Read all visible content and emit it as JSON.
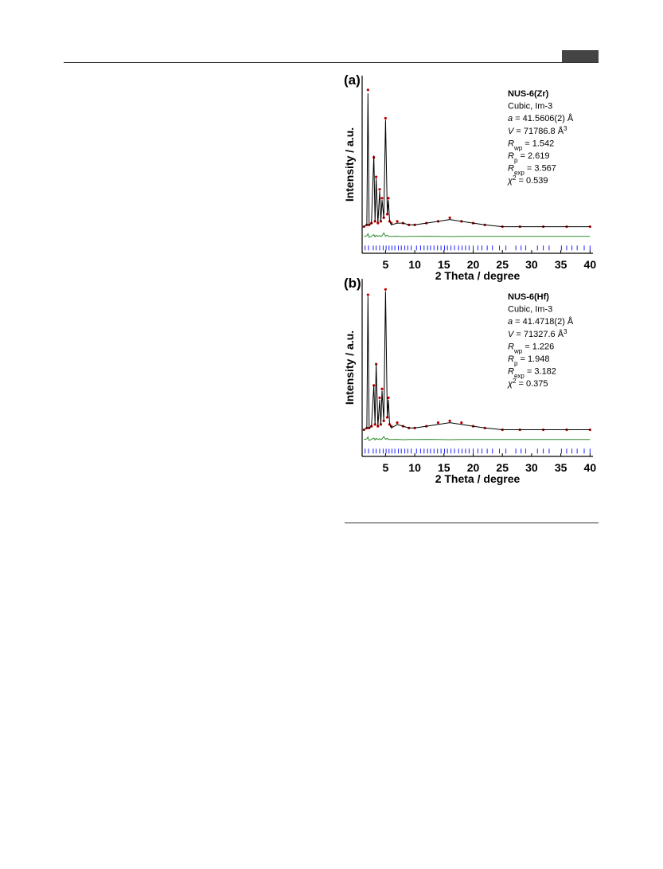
{
  "chart_data": [
    {
      "type": "line",
      "panel_label": "(a)",
      "x_label": "2 Theta / degree",
      "y_label": "Intensity / a.u.",
      "xlim": [
        1,
        40.5
      ],
      "ylim": [
        0,
        100
      ],
      "xticks": [
        5,
        10,
        15,
        20,
        25,
        30,
        35,
        40
      ],
      "annotations": [
        [
          {
            "text": "NUS-6(Zr)",
            "style": "bold"
          }
        ],
        [
          {
            "text": "Cubic, Im-3"
          }
        ],
        [
          {
            "text": "a",
            "style": "italic"
          },
          {
            "text": " = 41.5606(2) Å"
          }
        ],
        [
          {
            "text": "V",
            "style": "italic"
          },
          {
            "text": " = 71786.8 Å"
          },
          {
            "text": "3",
            "style": "sup"
          }
        ],
        [
          {
            "text": "R",
            "style": "italic"
          },
          {
            "text": "wp",
            "style": "sub"
          },
          {
            "text": " = 1.542"
          }
        ],
        [
          {
            "text": "R",
            "style": "italic"
          },
          {
            "text": "p",
            "style": "sub"
          },
          {
            "text": " = 2.619"
          }
        ],
        [
          {
            "text": "R",
            "style": "italic"
          },
          {
            "text": "exp",
            "style": "sub"
          },
          {
            "text": " = 3.567"
          }
        ],
        [
          {
            "text": "χ",
            "style": "italic"
          },
          {
            "text": "2",
            "style": "sup"
          },
          {
            "text": " = 0.539"
          }
        ]
      ],
      "x": [
        1.3,
        1.8,
        2.0,
        2.2,
        2.6,
        3.0,
        3.2,
        3.4,
        3.7,
        4.0,
        4.2,
        4.4,
        4.7,
        5.0,
        5.3,
        5.5,
        5.7,
        6.0,
        7,
        8,
        9,
        10,
        12,
        14,
        16,
        18,
        20,
        22,
        25,
        28,
        32,
        36,
        40
      ],
      "series": [
        {
          "style": "markers",
          "color": "#c00000",
          "values": [
            15,
            16,
            92,
            16,
            17,
            54,
            18,
            43,
            17,
            36,
            18,
            31,
            20,
            76,
            22,
            31,
            18,
            17,
            18,
            17,
            16,
            16,
            17,
            18,
            20,
            18,
            17,
            16,
            15,
            15,
            15,
            15,
            15
          ]
        },
        {
          "style": "line",
          "color": "#000000",
          "values": [
            15,
            16,
            90,
            16,
            17,
            55,
            18,
            42,
            17,
            35,
            18,
            30,
            20,
            75,
            22,
            30,
            18,
            16,
            17,
            17,
            16,
            16,
            17,
            18,
            19,
            18,
            17,
            16,
            15,
            15,
            15,
            15,
            15
          ]
        },
        {
          "style": "line",
          "color": "#2e8b2e",
          "values": [
            9.5,
            9.8,
            11,
            9,
            9.6,
            10.5,
            9.3,
            10.2,
            9.5,
            10,
            9.4,
            9.8,
            11.5,
            9.6,
            10.2,
            9.5,
            9.5,
            9.5,
            9.6,
            9.4,
            9.5,
            9.5,
            9.6,
            9.5,
            9.4,
            9.5,
            9.5,
            9.5,
            9.5,
            9.5,
            9.5,
            9.5,
            9.5
          ]
        }
      ],
      "bragg_color": "#1f1fff",
      "bragg_positions": [
        1.5,
        2.1,
        2.9,
        3.4,
        4.0,
        4.6,
        5.1,
        5.6,
        6.1,
        6.6,
        7.2,
        7.7,
        8.3,
        8.8,
        9.4,
        10.3,
        11.0,
        11.6,
        12.2,
        12.7,
        13.3,
        13.9,
        14.5,
        15.1,
        15.6,
        16.2,
        16.8,
        17.5,
        18.1,
        18.7,
        19.3,
        20.0,
        20.8,
        21.5,
        22.4,
        23.3,
        24.5,
        25.6,
        27.3,
        28.2,
        29.0,
        31.0,
        32.0,
        33.0,
        35.1,
        36.0,
        36.9,
        37.8,
        39.0,
        40.0
      ]
    },
    {
      "type": "line",
      "panel_label": "(b)",
      "x_label": "2 Theta / degree",
      "y_label": "Intensity / a.u.",
      "xlim": [
        1,
        40.5
      ],
      "ylim": [
        0,
        100
      ],
      "xticks": [
        5,
        10,
        15,
        20,
        25,
        30,
        35,
        40
      ],
      "annotations": [
        [
          {
            "text": "NUS-6(Hf)",
            "style": "bold"
          }
        ],
        [
          {
            "text": "Cubic, Im-3"
          }
        ],
        [
          {
            "text": "a",
            "style": "italic"
          },
          {
            "text": " = 41.4718(2) Å"
          }
        ],
        [
          {
            "text": "V",
            "style": "italic"
          },
          {
            "text": " = 71327.6 Å"
          },
          {
            "text": "3",
            "style": "sup"
          }
        ],
        [
          {
            "text": "R",
            "style": "italic"
          },
          {
            "text": "wp",
            "style": "sub"
          },
          {
            "text": " = 1.226"
          }
        ],
        [
          {
            "text": "R",
            "style": "italic"
          },
          {
            "text": "p",
            "style": "sub"
          },
          {
            "text": " = 1.948"
          }
        ],
        [
          {
            "text": "R",
            "style": "italic"
          },
          {
            "text": "exp",
            "style": "sub"
          },
          {
            "text": " = 3.182"
          }
        ],
        [
          {
            "text": "χ",
            "style": "italic"
          },
          {
            "text": "2",
            "style": "sup"
          },
          {
            "text": " = 0.375"
          }
        ]
      ],
      "x": [
        1.3,
        1.8,
        2.0,
        2.2,
        2.6,
        3.0,
        3.2,
        3.4,
        3.7,
        4.0,
        4.2,
        4.4,
        4.7,
        5.0,
        5.3,
        5.5,
        5.7,
        6.0,
        7,
        8,
        9,
        10,
        12,
        14,
        16,
        18,
        20,
        22,
        25,
        28,
        32,
        36,
        40
      ],
      "series": [
        {
          "style": "markers",
          "color": "#c00000",
          "values": [
            15,
            16,
            91,
            16,
            17,
            40,
            18,
            52,
            17,
            33,
            18,
            38,
            20,
            94,
            22,
            33,
            18,
            17,
            19,
            17,
            16,
            16,
            17,
            19,
            20,
            19,
            17,
            16,
            15,
            15,
            15,
            15,
            15
          ]
        },
        {
          "style": "line",
          "color": "#000000",
          "values": [
            15,
            16,
            90,
            16,
            17,
            40,
            18,
            52,
            17,
            32,
            18,
            37,
            20,
            93,
            22,
            32,
            18,
            16,
            18,
            17,
            16,
            16,
            17,
            18,
            19,
            18,
            17,
            16,
            15,
            15,
            15,
            15,
            15
          ]
        },
        {
          "style": "line",
          "color": "#2e8b2e",
          "values": [
            9.5,
            9.8,
            11,
            9,
            9.6,
            10.3,
            9.3,
            10.2,
            9.5,
            10,
            9.4,
            9.8,
            11.2,
            9.6,
            10.2,
            9.5,
            9.5,
            9.5,
            9.6,
            9.4,
            9.5,
            9.5,
            9.6,
            9.5,
            9.4,
            9.5,
            9.5,
            9.5,
            9.5,
            9.5,
            9.5,
            9.5,
            9.5
          ]
        }
      ],
      "bragg_color": "#1f1fff",
      "bragg_positions": [
        1.5,
        2.1,
        2.9,
        3.4,
        4.0,
        4.6,
        5.1,
        5.6,
        6.1,
        6.6,
        7.2,
        7.7,
        8.3,
        8.8,
        9.4,
        10.3,
        11.0,
        11.6,
        12.2,
        12.7,
        13.3,
        13.9,
        14.5,
        15.1,
        15.6,
        16.2,
        16.8,
        17.5,
        18.1,
        18.7,
        19.3,
        20.0,
        20.8,
        21.5,
        22.4,
        23.3,
        24.5,
        25.6,
        27.3,
        28.2,
        29.0,
        31.0,
        32.0,
        33.0,
        35.1,
        36.0,
        36.9,
        37.8,
        39.0,
        40.0
      ]
    }
  ]
}
